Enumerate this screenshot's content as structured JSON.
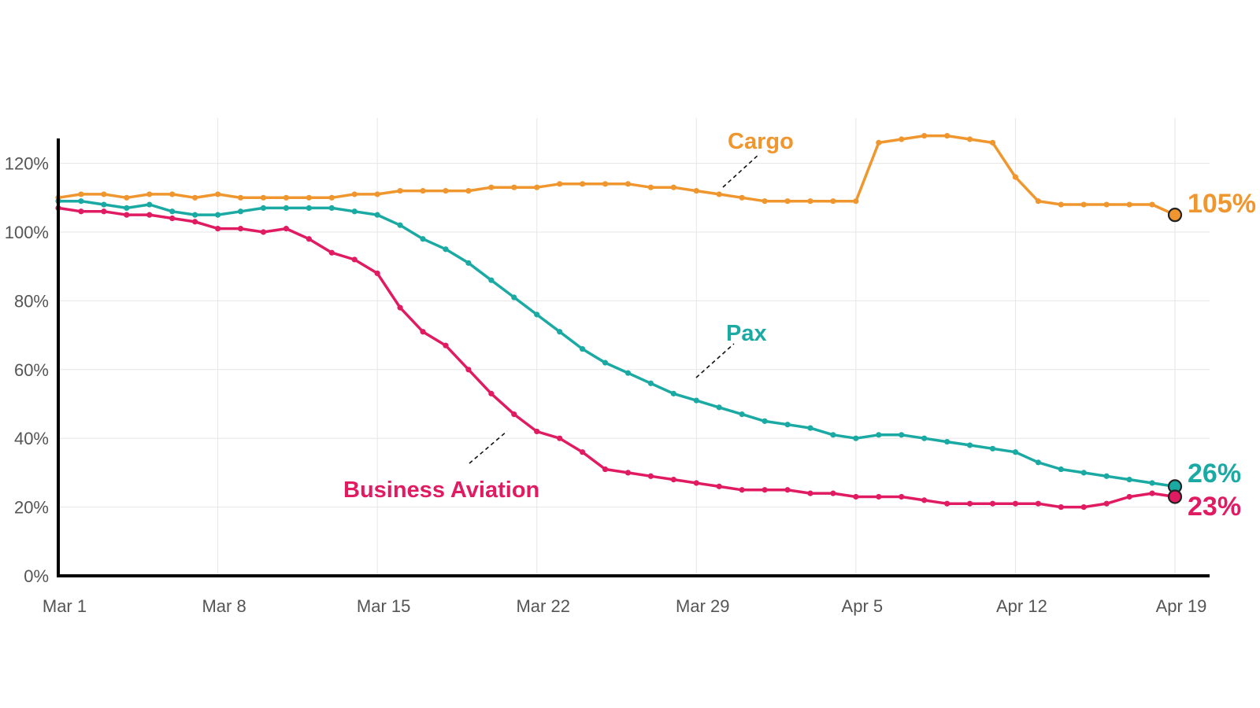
{
  "chart_data": {
    "type": "line",
    "title": "",
    "xlabel": "",
    "ylabel": "",
    "x": [
      "Mar 1",
      "Mar 2",
      "Mar 3",
      "Mar 4",
      "Mar 5",
      "Mar 6",
      "Mar 7",
      "Mar 8",
      "Mar 9",
      "Mar 10",
      "Mar 11",
      "Mar 12",
      "Mar 13",
      "Mar 14",
      "Mar 15",
      "Mar 16",
      "Mar 17",
      "Mar 18",
      "Mar 19",
      "Mar 20",
      "Mar 21",
      "Mar 22",
      "Mar 23",
      "Mar 24",
      "Mar 25",
      "Mar 26",
      "Mar 27",
      "Mar 28",
      "Mar 29",
      "Mar 30",
      "Mar 31",
      "Apr 1",
      "Apr 2",
      "Apr 3",
      "Apr 4",
      "Apr 5",
      "Apr 6",
      "Apr 7",
      "Apr 8",
      "Apr 9",
      "Apr 10",
      "Apr 11",
      "Apr 12",
      "Apr 13",
      "Apr 14",
      "Apr 15",
      "Apr 16",
      "Apr 17",
      "Apr 18",
      "Apr 19"
    ],
    "x_ticks": [
      "Mar 1",
      "Mar 8",
      "Mar 15",
      "Mar 22",
      "Mar 29",
      "Apr 5",
      "Apr 12",
      "Apr 19"
    ],
    "y_ticks": [
      "0%",
      "20%",
      "40%",
      "60%",
      "80%",
      "100%",
      "120%"
    ],
    "ylim": [
      0,
      127
    ],
    "grid": true,
    "legend": "none (series labelled directly on the chart)",
    "series": [
      {
        "name": "Cargo",
        "color": "#f0962e",
        "end_label": "105%",
        "values": [
          110,
          111,
          111,
          110,
          111,
          111,
          110,
          111,
          110,
          110,
          110,
          110,
          110,
          111,
          111,
          112,
          112,
          112,
          112,
          113,
          113,
          113,
          114,
          114,
          114,
          114,
          113,
          113,
          112,
          111,
          110,
          109,
          109,
          109,
          109,
          109,
          126,
          127,
          128,
          128,
          127,
          126,
          116,
          109,
          108,
          108,
          108,
          108,
          108,
          105
        ]
      },
      {
        "name": "Pax",
        "color": "#1aaaa3",
        "end_label": "26%",
        "values": [
          109,
          109,
          108,
          107,
          108,
          106,
          105,
          105,
          106,
          107,
          107,
          107,
          107,
          106,
          105,
          102,
          98,
          95,
          91,
          86,
          81,
          76,
          71,
          66,
          62,
          59,
          56,
          53,
          51,
          49,
          47,
          45,
          44,
          43,
          41,
          40,
          41,
          41,
          40,
          39,
          38,
          37,
          36,
          33,
          31,
          30,
          29,
          28,
          27,
          26
        ]
      },
      {
        "name": "Business Aviation",
        "color": "#e01b62",
        "end_label": "23%",
        "values": [
          107,
          106,
          106,
          105,
          105,
          104,
          103,
          101,
          101,
          100,
          101,
          98,
          94,
          92,
          88,
          78,
          71,
          67,
          60,
          53,
          47,
          42,
          40,
          36,
          31,
          30,
          29,
          28,
          27,
          26,
          25,
          25,
          25,
          24,
          24,
          23,
          23,
          23,
          22,
          21,
          21,
          21,
          21,
          21,
          20,
          20,
          21,
          23,
          24,
          23
        ]
      }
    ]
  }
}
